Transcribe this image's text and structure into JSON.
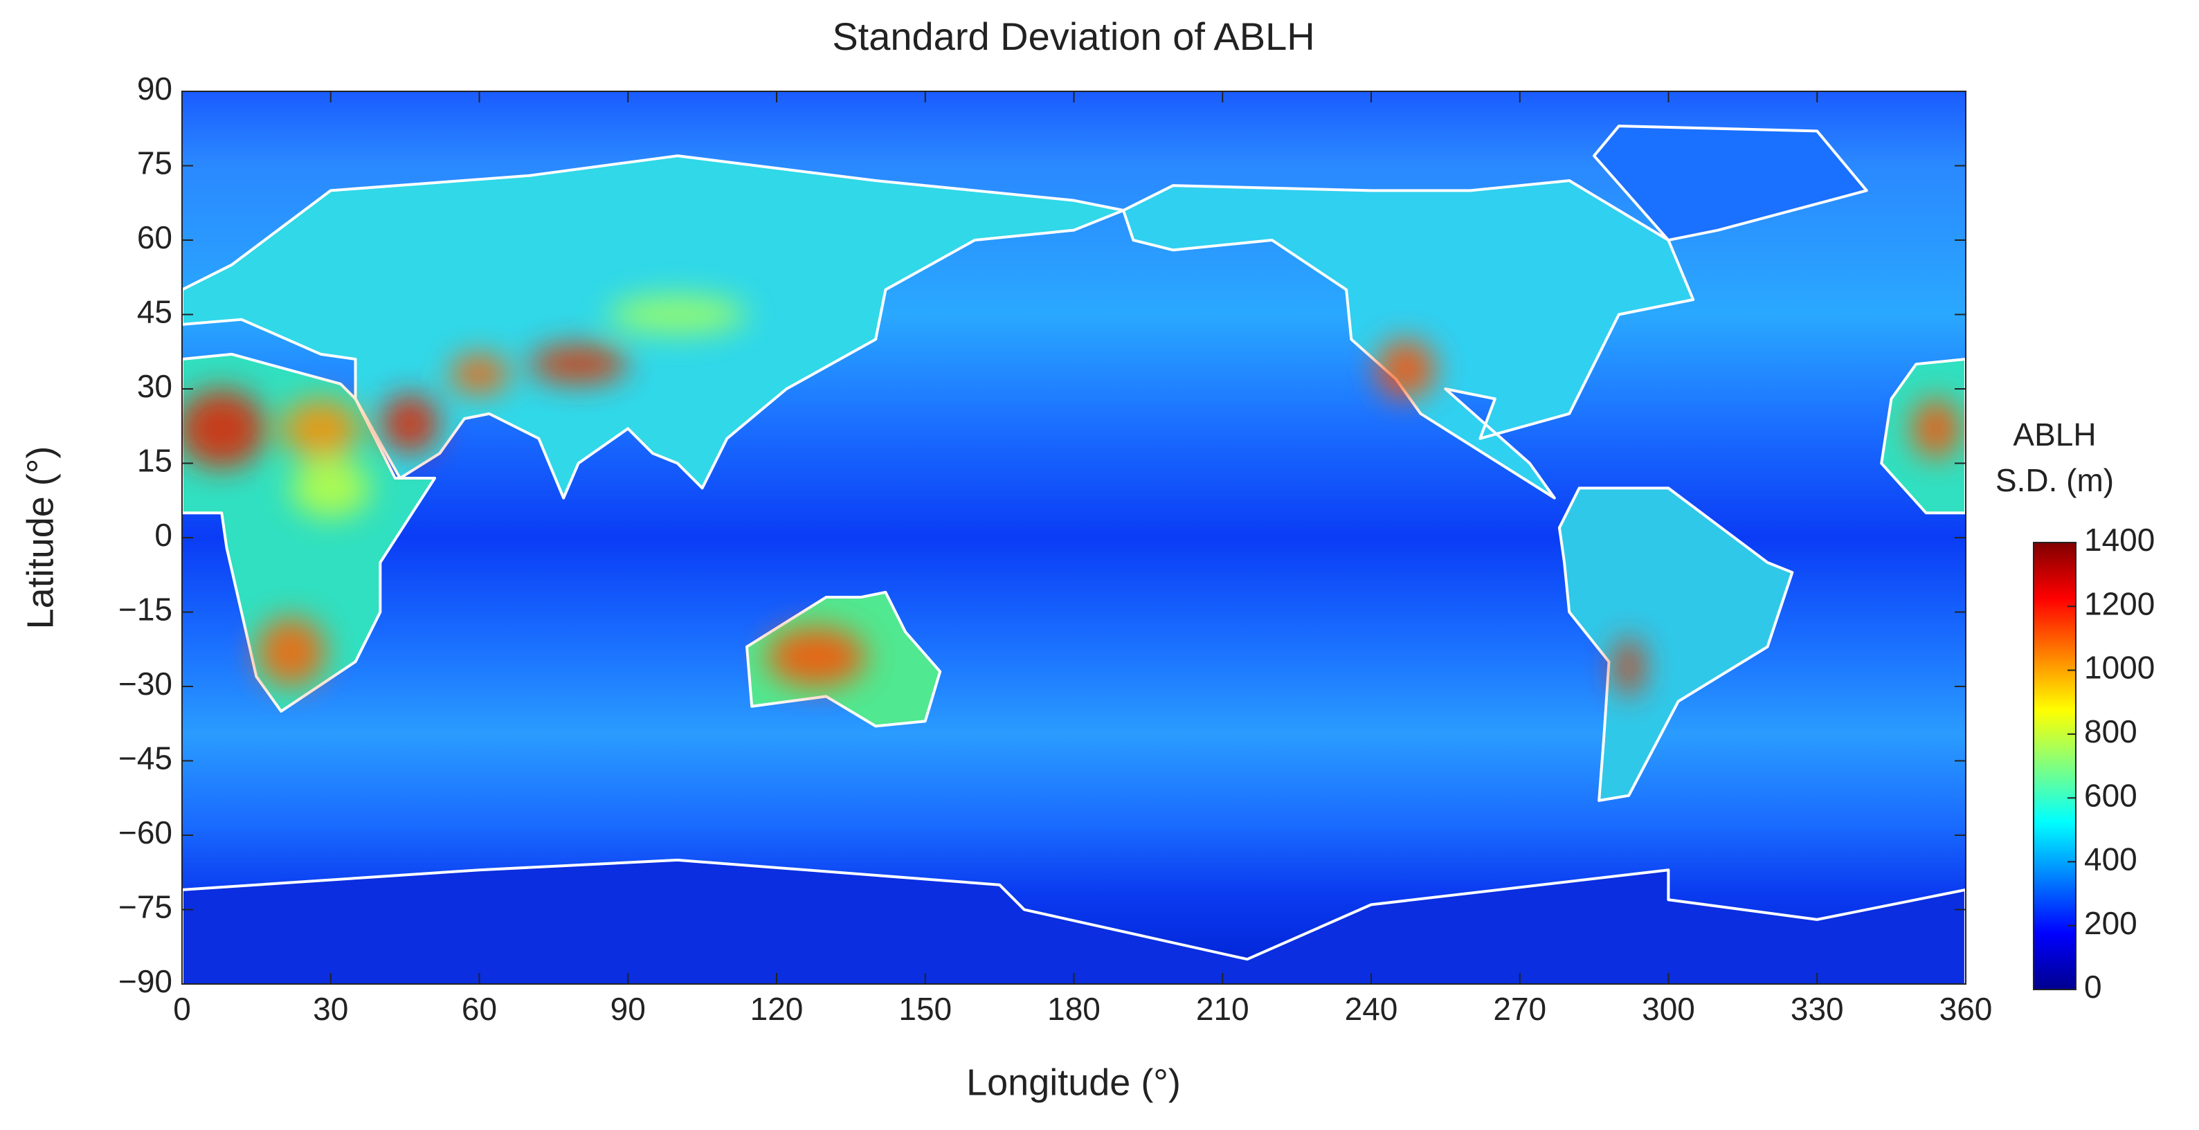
{
  "chart_data": {
    "type": "heatmap",
    "title": "Standard Deviation of ABLH",
    "xlabel": "Longitude (°)",
    "ylabel": "Latitude (°)",
    "xlim": [
      0,
      360
    ],
    "xticks": [
      0,
      30,
      60,
      90,
      120,
      150,
      180,
      210,
      240,
      270,
      300,
      330,
      360
    ],
    "ylim": [
      -90,
      90
    ],
    "yticks": [
      {
        "value": -90,
        "label": "−90"
      },
      {
        "value": -75,
        "label": "−75"
      },
      {
        "value": -60,
        "label": "−60"
      },
      {
        "value": -45,
        "label": "−45"
      },
      {
        "value": -30,
        "label": "−30"
      },
      {
        "value": -15,
        "label": "−15"
      },
      0,
      15,
      30,
      45,
      60,
      75,
      90
    ],
    "colorbar": {
      "label": [
        "ABLH",
        "S.D. (m)"
      ],
      "lim": [
        0,
        1400
      ],
      "ticks": [
        0,
        200,
        400,
        600,
        800,
        1000,
        1200,
        1400
      ],
      "colormap": [
        "#00008f",
        "#0000ff",
        "#0080ff",
        "#00ffff",
        "#80ff80",
        "#ffff00",
        "#ff8000",
        "#ff0000",
        "#800000"
      ]
    }
  }
}
